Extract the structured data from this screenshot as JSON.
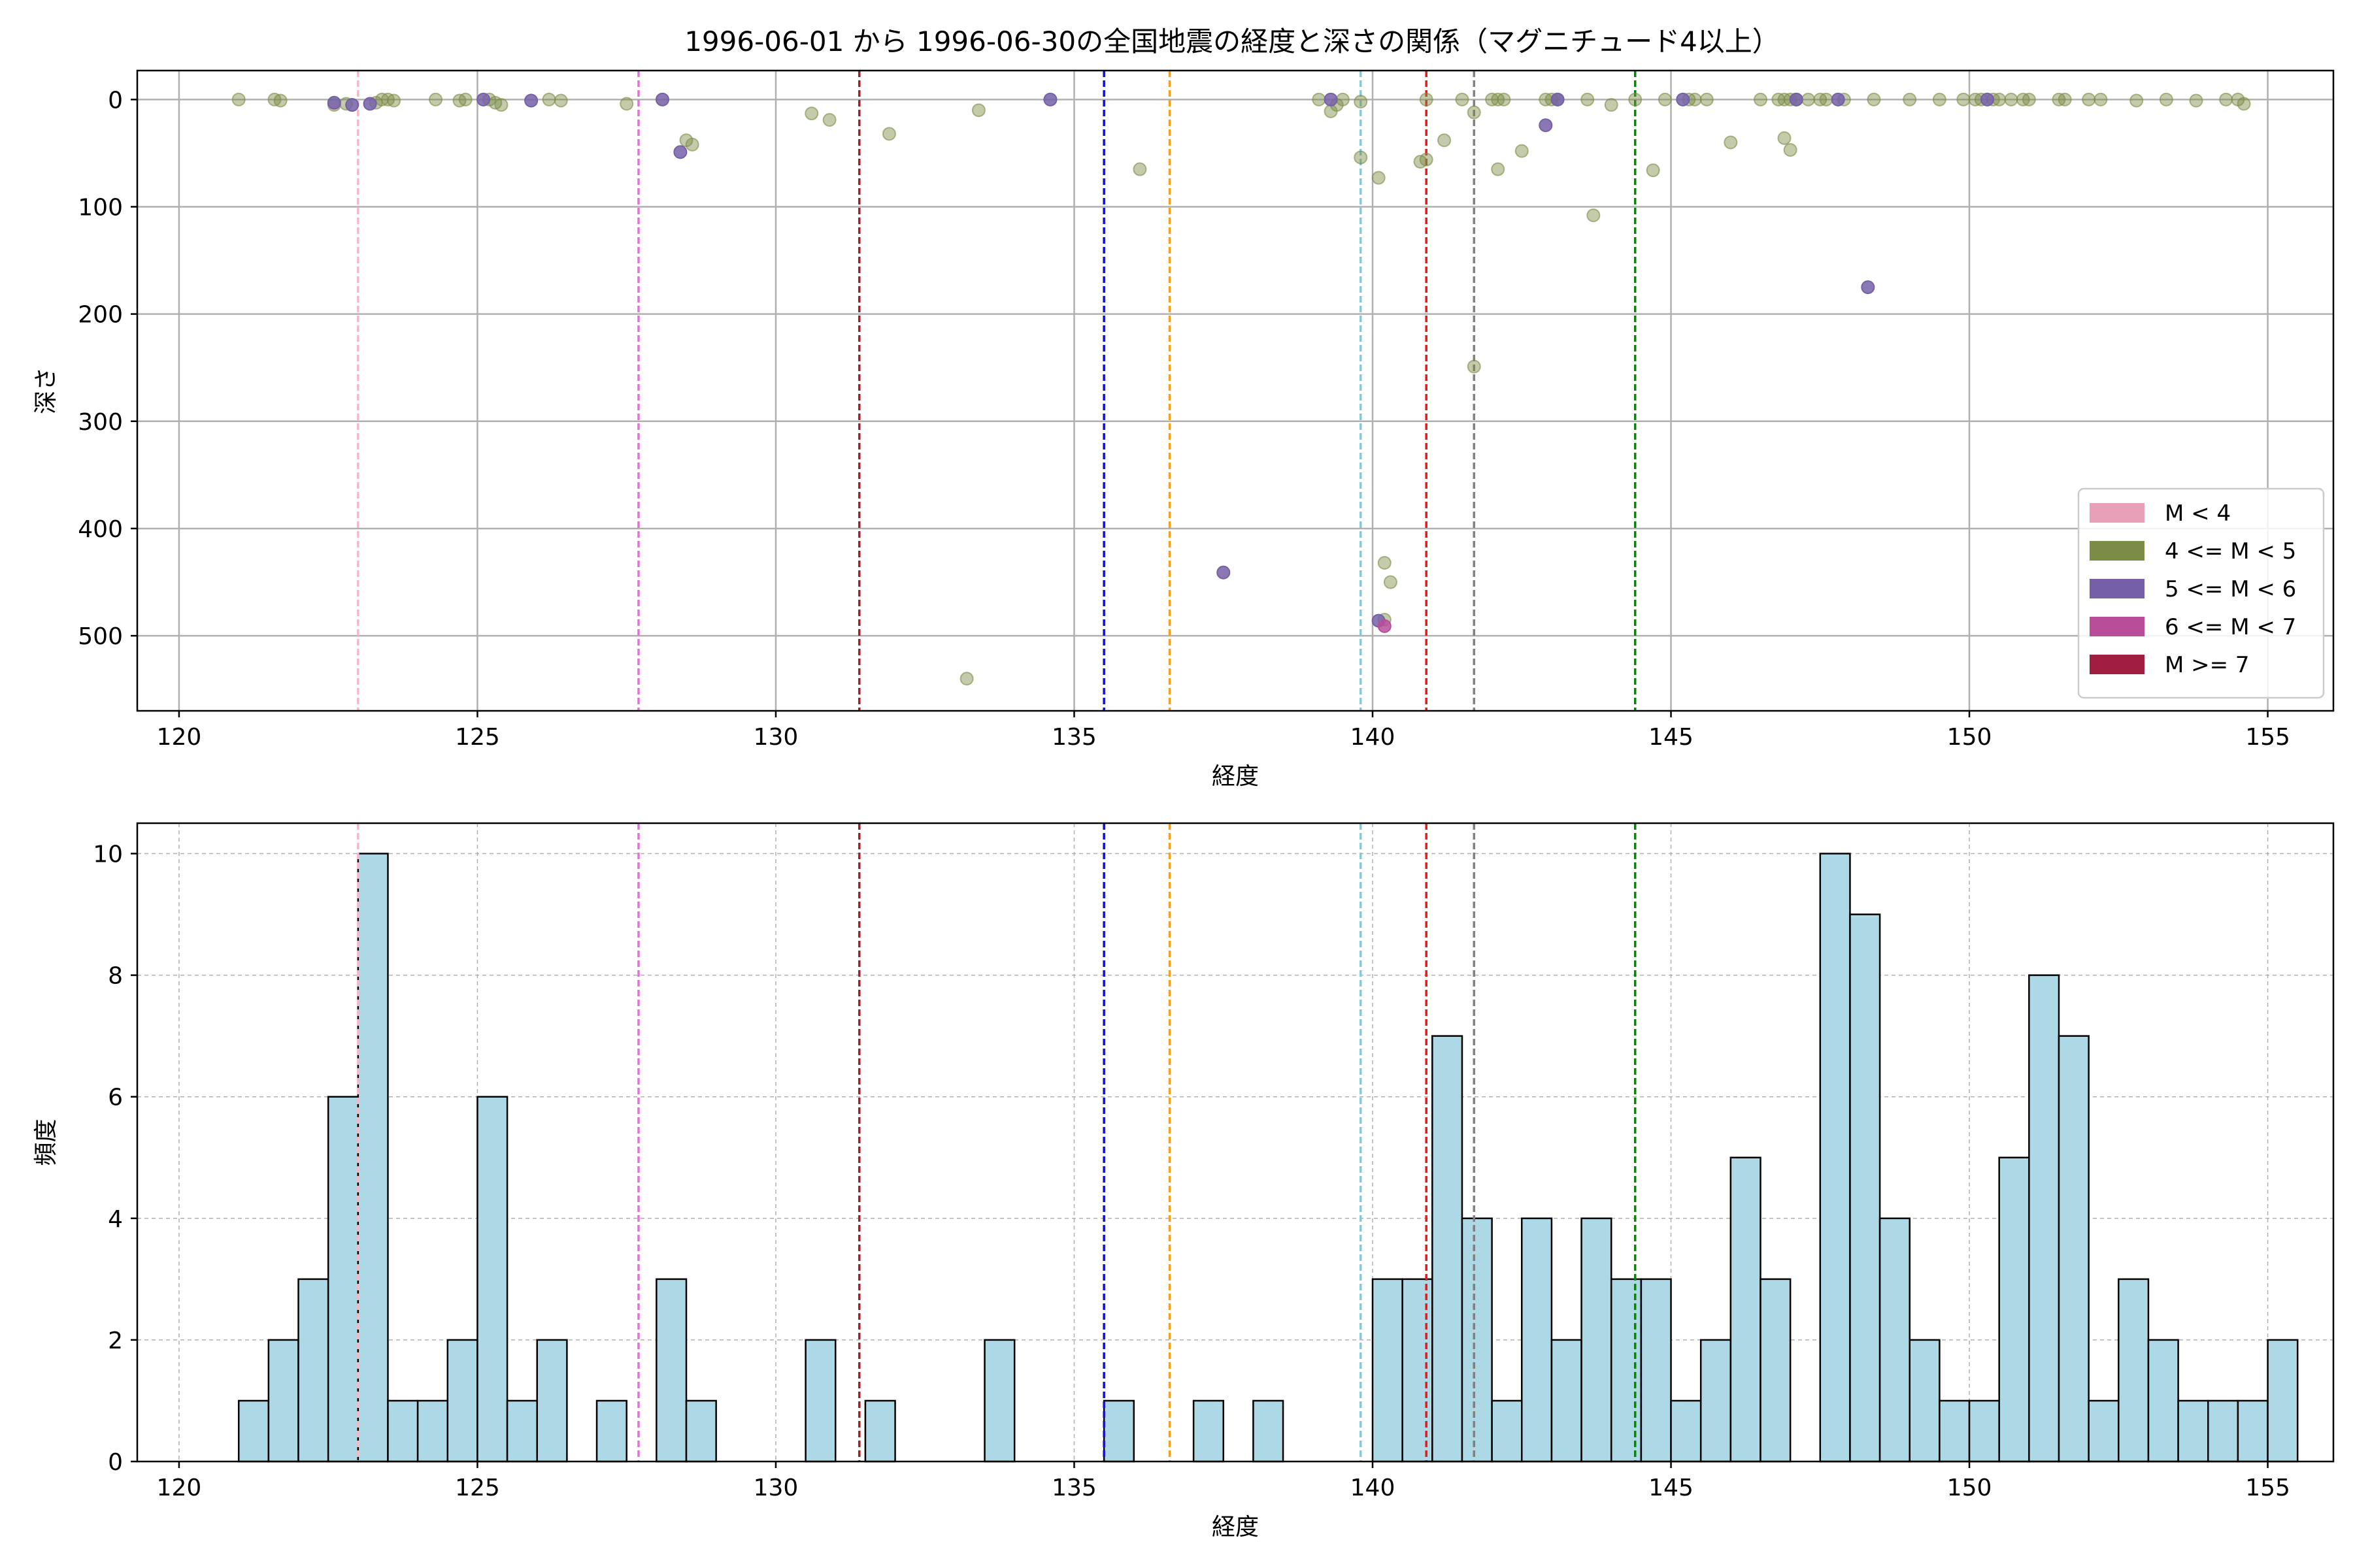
{
  "figure": {
    "title": "1996-06-01 から 1996-06-30の全国地震の経度と深さの関係（マグニチュード4以上）"
  },
  "chart_data": [
    {
      "type": "scatter",
      "xlabel": "経度",
      "ylabel": "深さ",
      "xlim": [
        119.3,
        156.1
      ],
      "ylim": [
        570,
        -27
      ],
      "y_inverted": true,
      "xticks": [
        120,
        125,
        130,
        135,
        140,
        145,
        150,
        155
      ],
      "yticks": [
        0,
        100,
        200,
        300,
        400,
        500
      ],
      "grid": true,
      "legend_position": "lower-right",
      "legend": [
        {
          "label": "M < 4",
          "color": "#e8a0b8"
        },
        {
          "label": "4 <= M < 5",
          "color": "#7b8c45"
        },
        {
          "label": "5 <= M < 6",
          "color": "#7560a8"
        },
        {
          "label": "6 <= M < 7",
          "color": "#b84e9a"
        },
        {
          "label": "M >= 7",
          "color": "#a01e40"
        }
      ],
      "vlines": [
        {
          "x": 123.0,
          "color": "#f5b8c8"
        },
        {
          "x": 127.7,
          "color": "#e870d8"
        },
        {
          "x": 131.4,
          "color": "#a02028"
        },
        {
          "x": 135.5,
          "color": "#1010d0"
        },
        {
          "x": 136.6,
          "color": "#f5a020"
        },
        {
          "x": 139.8,
          "color": "#88c8d8"
        },
        {
          "x": 140.9,
          "color": "#e81818"
        },
        {
          "x": 141.7,
          "color": "#808080"
        },
        {
          "x": 144.4,
          "color": "#108010"
        }
      ],
      "series": [
        {
          "name": "4 <= M < 5",
          "color": "#7b8c45",
          "points": [
            [
              121.0,
              0
            ],
            [
              121.6,
              0
            ],
            [
              121.7,
              1
            ],
            [
              122.6,
              5
            ],
            [
              122.8,
              4
            ],
            [
              123.3,
              3
            ],
            [
              123.4,
              0
            ],
            [
              123.5,
              0
            ],
            [
              123.6,
              1
            ],
            [
              124.3,
              0
            ],
            [
              124.7,
              1
            ],
            [
              124.8,
              0
            ],
            [
              125.2,
              0
            ],
            [
              125.3,
              3
            ],
            [
              125.4,
              5
            ],
            [
              126.2,
              0
            ],
            [
              126.4,
              1
            ],
            [
              127.5,
              4
            ],
            [
              128.5,
              38
            ],
            [
              128.6,
              42
            ],
            [
              130.6,
              13
            ],
            [
              130.9,
              19
            ],
            [
              131.9,
              32
            ],
            [
              133.4,
              10
            ],
            [
              136.1,
              65
            ],
            [
              139.1,
              0
            ],
            [
              139.3,
              11
            ],
            [
              139.4,
              5
            ],
            [
              139.5,
              0
            ],
            [
              139.8,
              2
            ],
            [
              139.8,
              54
            ],
            [
              140.1,
              73
            ],
            [
              140.2,
              432
            ],
            [
              140.3,
              450
            ],
            [
              140.2,
              485
            ],
            [
              140.8,
              58
            ],
            [
              140.9,
              0
            ],
            [
              140.9,
              56
            ],
            [
              141.2,
              38
            ],
            [
              141.7,
              249
            ],
            [
              141.7,
              12
            ],
            [
              141.5,
              0
            ],
            [
              142.0,
              0
            ],
            [
              142.1,
              0
            ],
            [
              142.1,
              65
            ],
            [
              142.2,
              0
            ],
            [
              142.5,
              48
            ],
            [
              142.9,
              0
            ],
            [
              143.0,
              0
            ],
            [
              143.1,
              0
            ],
            [
              143.6,
              0
            ],
            [
              143.7,
              108
            ],
            [
              144.0,
              5
            ],
            [
              144.4,
              0
            ],
            [
              144.7,
              66
            ],
            [
              144.9,
              0
            ],
            [
              145.3,
              0
            ],
            [
              145.4,
              0
            ],
            [
              145.6,
              0
            ],
            [
              146.0,
              40
            ],
            [
              146.5,
              0
            ],
            [
              146.8,
              0
            ],
            [
              146.9,
              36
            ],
            [
              146.9,
              0
            ],
            [
              147.0,
              47
            ],
            [
              147.0,
              0
            ],
            [
              147.1,
              0
            ],
            [
              147.3,
              0
            ],
            [
              147.5,
              0
            ],
            [
              147.6,
              0
            ],
            [
              147.9,
              0
            ],
            [
              148.4,
              0
            ],
            [
              149.0,
              0
            ],
            [
              149.5,
              0
            ],
            [
              149.9,
              0
            ],
            [
              150.1,
              0
            ],
            [
              150.2,
              0
            ],
            [
              150.4,
              0
            ],
            [
              150.5,
              0
            ],
            [
              150.7,
              0
            ],
            [
              150.9,
              0
            ],
            [
              151.0,
              0
            ],
            [
              151.5,
              0
            ],
            [
              151.6,
              0
            ],
            [
              152.0,
              0
            ],
            [
              152.2,
              0
            ],
            [
              152.8,
              1
            ],
            [
              153.3,
              0
            ],
            [
              153.8,
              1
            ],
            [
              154.3,
              0
            ],
            [
              154.5,
              0
            ],
            [
              154.6,
              4
            ],
            [
              133.2,
              540
            ]
          ]
        },
        {
          "name": "5 <= M < 6",
          "color": "#7560a8",
          "points": [
            [
              122.6,
              3
            ],
            [
              122.9,
              5
            ],
            [
              123.2,
              4
            ],
            [
              125.1,
              0
            ],
            [
              125.9,
              1
            ],
            [
              128.1,
              0
            ],
            [
              128.4,
              49
            ],
            [
              134.6,
              0
            ],
            [
              137.5,
              441
            ],
            [
              139.3,
              0
            ],
            [
              140.1,
              486
            ],
            [
              142.9,
              24
            ],
            [
              143.1,
              0
            ],
            [
              145.2,
              0
            ],
            [
              147.1,
              0
            ],
            [
              147.8,
              0
            ],
            [
              148.3,
              175
            ],
            [
              150.3,
              0
            ]
          ]
        },
        {
          "name": "6 <= M < 7",
          "color": "#b84e9a",
          "points": [
            [
              140.2,
              491
            ]
          ]
        }
      ]
    },
    {
      "type": "bar",
      "xlabel": "経度",
      "ylabel": "頻度",
      "xlim": [
        119.3,
        156.1
      ],
      "ylim": [
        0,
        10.5
      ],
      "xticks": [
        120,
        125,
        130,
        135,
        140,
        145,
        150,
        155
      ],
      "yticks": [
        0,
        2,
        4,
        6,
        8,
        10
      ],
      "grid": true,
      "bar_color": "#add8e6",
      "bin_start": 121.0,
      "bin_width": 0.5,
      "values": [
        1,
        2,
        3,
        6,
        10,
        1,
        1,
        2,
        6,
        1,
        2,
        0,
        1,
        0,
        3,
        1,
        0,
        0,
        0,
        2,
        0,
        1,
        0,
        0,
        0,
        2,
        0,
        0,
        0,
        1,
        0,
        0,
        1,
        0,
        1,
        0,
        0,
        0,
        3,
        3,
        7,
        4,
        1,
        4,
        2,
        4,
        3,
        3,
        1,
        2,
        5,
        3,
        0,
        10,
        9,
        4,
        2,
        1,
        1,
        5,
        8,
        7,
        1,
        3,
        2,
        1,
        1,
        1,
        2
      ],
      "vlines": [
        {
          "x": 123.0,
          "color": "#f5b8c8"
        },
        {
          "x": 127.7,
          "color": "#e870d8"
        },
        {
          "x": 131.4,
          "color": "#a02028"
        },
        {
          "x": 135.5,
          "color": "#1010d0"
        },
        {
          "x": 136.6,
          "color": "#f5a020"
        },
        {
          "x": 139.8,
          "color": "#88c8d8"
        },
        {
          "x": 140.9,
          "color": "#e81818"
        },
        {
          "x": 141.7,
          "color": "#808080"
        },
        {
          "x": 144.4,
          "color": "#108010"
        }
      ]
    }
  ]
}
